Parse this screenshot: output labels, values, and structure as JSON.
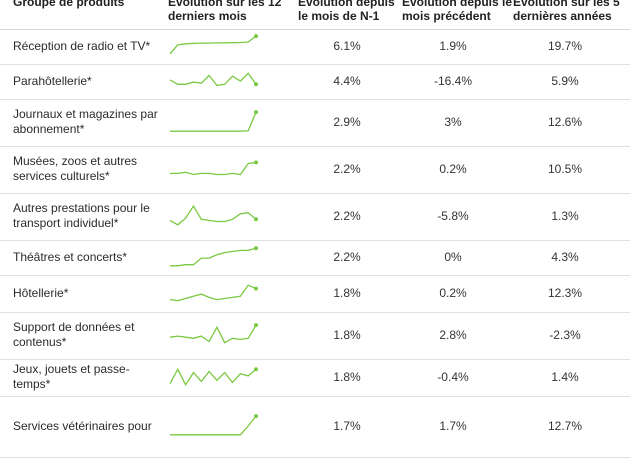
{
  "table": {
    "headers": {
      "product": "Groupe de produits",
      "trend": [
        "Évolution sur les 12",
        "derniers mois"
      ],
      "yoy": [
        "Évolution depuis",
        "le mois de N-1"
      ],
      "mom": [
        "Évolution depuis le",
        "mois précédent"
      ],
      "years": [
        "Évolution sur les 5",
        "dernières années"
      ]
    },
    "accent_color": "#7ac943",
    "rows": [
      {
        "name": "Réception de radio et TV*",
        "yoy": "6.1%",
        "mom": "1.9%",
        "years": "19.7%",
        "trend": [
          0.15,
          0.55,
          0.6,
          0.62,
          0.63,
          0.63,
          0.64,
          0.64,
          0.65,
          0.66,
          0.68,
          0.95
        ]
      },
      {
        "name": "Parahôtellerie*",
        "yoy": "4.4%",
        "mom": "-16.4%",
        "years": "5.9%",
        "trend": [
          0.55,
          0.35,
          0.35,
          0.45,
          0.4,
          0.75,
          0.3,
          0.35,
          0.72,
          0.5,
          0.85,
          0.35
        ]
      },
      {
        "name": "Journaux et magazines par abonnement*",
        "yoy": "2.9%",
        "mom": "3%",
        "years": "12.6%",
        "trend": [
          0.08,
          0.08,
          0.08,
          0.08,
          0.08,
          0.08,
          0.08,
          0.08,
          0.08,
          0.08,
          0.1,
          0.95
        ]
      },
      {
        "name": "Musées, zoos et autres services culturels*",
        "yoy": "2.2%",
        "mom": "0.2%",
        "years": "10.5%",
        "trend": [
          0.3,
          0.3,
          0.35,
          0.25,
          0.3,
          0.3,
          0.25,
          0.25,
          0.3,
          0.25,
          0.75,
          0.8
        ]
      },
      {
        "name": "Autres prestations pour le transport individuel*",
        "yoy": "2.2%",
        "mom": "-5.8%",
        "years": "1.3%",
        "trend": [
          0.3,
          0.1,
          0.4,
          0.95,
          0.35,
          0.3,
          0.25,
          0.25,
          0.35,
          0.6,
          0.65,
          0.35
        ]
      },
      {
        "name": "Théâtres et concerts*",
        "yoy": "2.2%",
        "mom": "0%",
        "years": "4.3%",
        "trend": [
          0.1,
          0.1,
          0.15,
          0.15,
          0.45,
          0.45,
          0.6,
          0.7,
          0.75,
          0.8,
          0.8,
          0.9
        ]
      },
      {
        "name": "Hôtellerie*",
        "yoy": "1.8%",
        "mom": "0.2%",
        "years": "12.3%",
        "trend": [
          0.2,
          0.15,
          0.25,
          0.35,
          0.45,
          0.3,
          0.2,
          0.25,
          0.3,
          0.35,
          0.85,
          0.7
        ]
      },
      {
        "name": "Support de données et contenus*",
        "yoy": "1.8%",
        "mom": "2.8%",
        "years": "-2.3%",
        "trend": [
          0.4,
          0.45,
          0.4,
          0.35,
          0.45,
          0.2,
          0.85,
          0.15,
          0.35,
          0.3,
          0.35,
          0.95
        ]
      },
      {
        "name": "Jeux, jouets et passe-temps*",
        "yoy": "1.8%",
        "mom": "-0.4%",
        "years": "1.4%",
        "trend": [
          0.2,
          0.85,
          0.15,
          0.7,
          0.3,
          0.75,
          0.35,
          0.7,
          0.25,
          0.65,
          0.55,
          0.85
        ]
      },
      {
        "name": "Services vétérinaires pour",
        "yoy": "1.7%",
        "mom": "1.7%",
        "years": "12.7%",
        "trend": [
          0.1,
          0.1,
          0.1,
          0.1,
          0.1,
          0.1,
          0.1,
          0.1,
          0.1,
          0.1,
          0.5,
          0.95
        ]
      }
    ]
  }
}
